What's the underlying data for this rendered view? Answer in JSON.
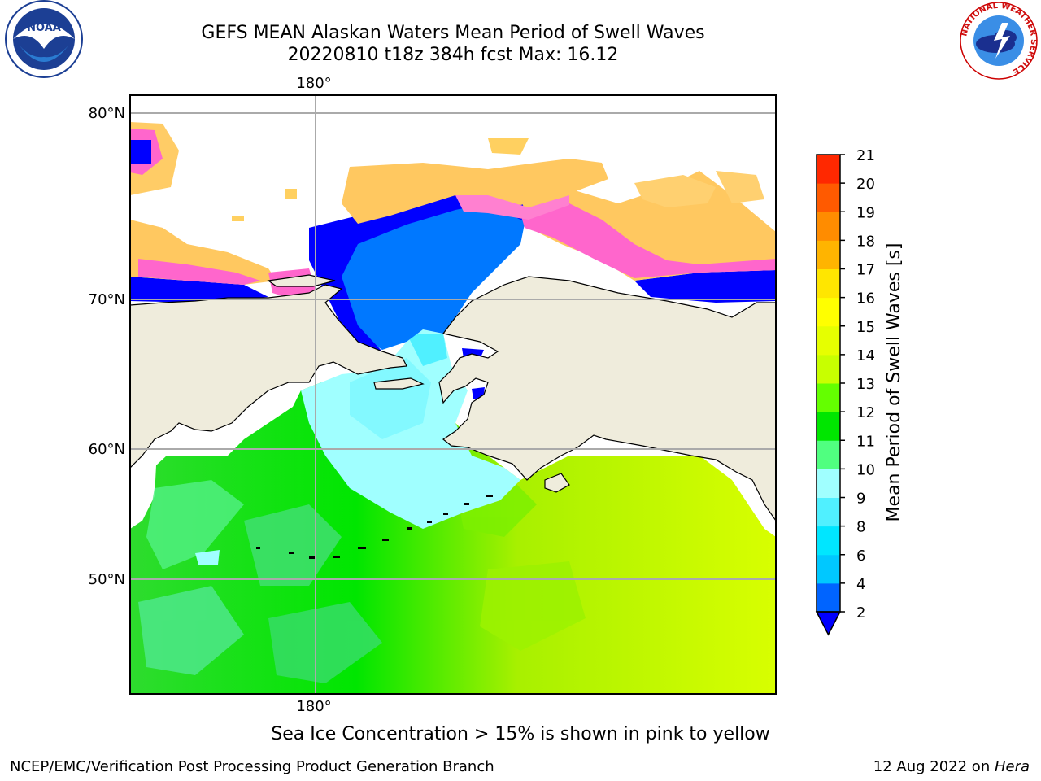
{
  "title": {
    "line1": "GEFS MEAN Alaskan Waters Mean Period of Swell Waves",
    "line2": "20220810 t18z 384h fcst   Max: 16.12"
  },
  "map": {
    "lat_labels": [
      "80°N",
      "70°N",
      "60°N",
      "50°N"
    ],
    "lon_label_top": "180°",
    "lon_label_bottom": "180°"
  },
  "colorbar": {
    "label": "Mean Period of Swell Waves [s]",
    "ticks": [
      "2",
      "4",
      "6",
      "8",
      "9",
      "10",
      "11",
      "12",
      "13",
      "14",
      "15",
      "16",
      "17",
      "18",
      "19",
      "20",
      "21"
    ],
    "colors": [
      "#0064ff",
      "#00c8ff",
      "#00e6ff",
      "#50f0ff",
      "#a0ffff",
      "#50ff80",
      "#00e600",
      "#64ff00",
      "#c8ff00",
      "#e6ff00",
      "#ffff00",
      "#ffe600",
      "#ffb400",
      "#ff8c00",
      "#ff5a00",
      "#ff2800"
    ],
    "under_color": "#0000ff"
  },
  "logos": {
    "nws_text": "NATIONAL WEATHER SERVICE",
    "noaa_text": "NOAA"
  },
  "annotation": "Sea Ice Concentration > 15% is shown in pink to yellow",
  "footer": {
    "left": "NCEP/EMC/Verification Post Processing Product Generation Branch",
    "right_date": "12 Aug 2022 on ",
    "right_host": "Hera"
  }
}
